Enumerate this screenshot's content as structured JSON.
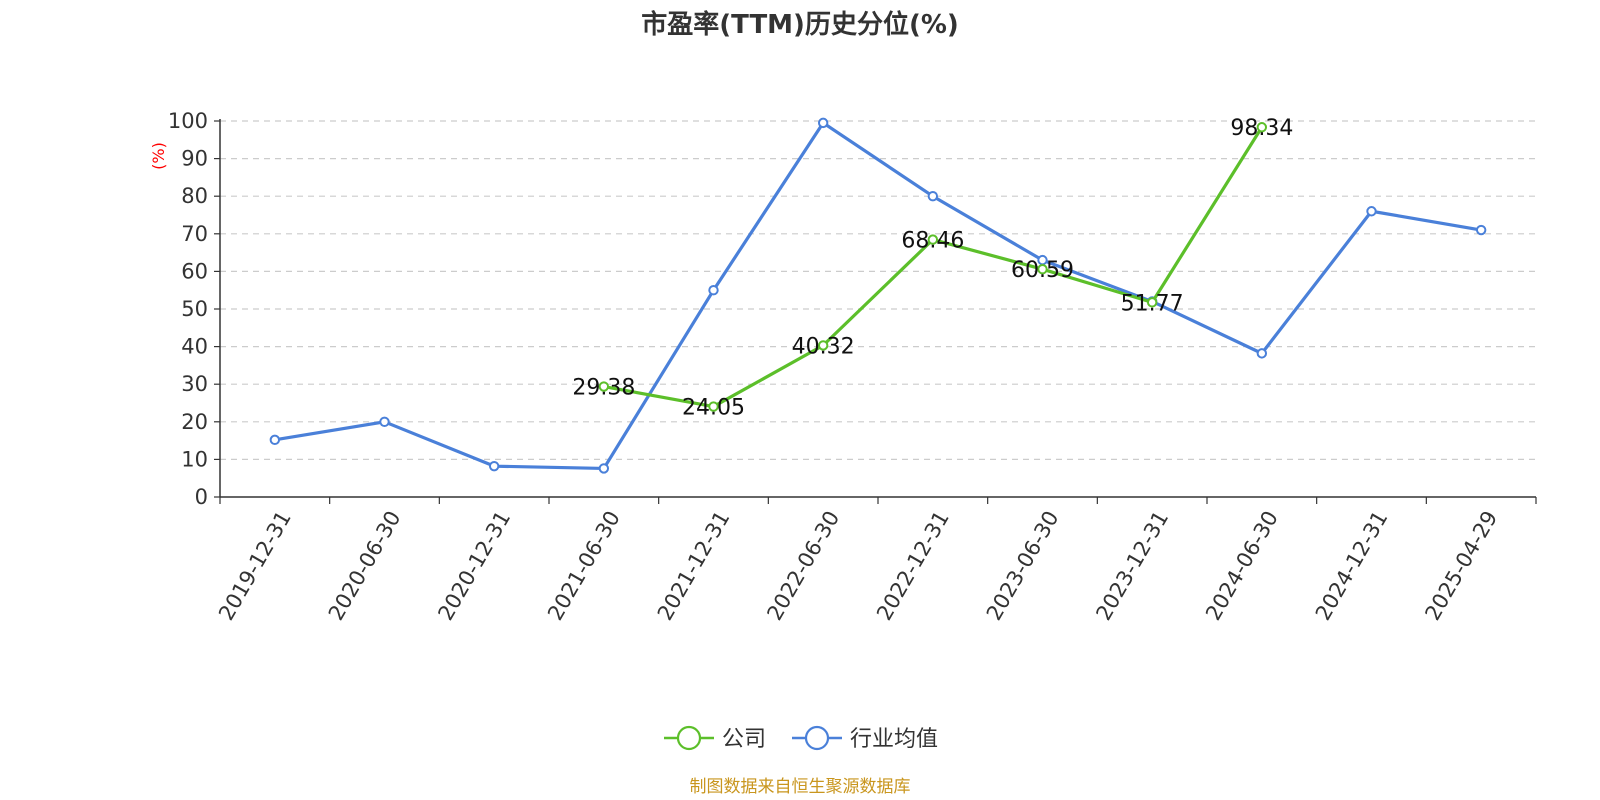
{
  "chart_data": {
    "type": "line",
    "title": "市盈率(TTM)历史分位(%)",
    "y_unit": "(%)",
    "ylim": [
      0,
      100
    ],
    "y_ticks": [
      0,
      10,
      20,
      30,
      40,
      50,
      60,
      70,
      80,
      90,
      100
    ],
    "grid": "horizontal dashed",
    "legend_position": "bottom-center",
    "x_tick_labels": [
      "2019-12-31",
      "2020-06-30",
      "2020-12-31",
      "2021-06-30",
      "2021-12-31",
      "2022-06-30",
      "2022-12-31",
      "2023-06-30",
      "2023-12-31",
      "2024-06-30",
      "2024-12-31",
      "2025-04-29"
    ],
    "series": [
      {
        "name": "公司",
        "color": "#5cbf2a",
        "values": [
          null,
          null,
          null,
          29.38,
          24.05,
          40.32,
          68.46,
          60.59,
          51.77,
          98.34,
          null,
          null
        ],
        "value_labels": [
          "",
          "",
          "",
          "29.38",
          "24.05",
          "40.32",
          "68.46",
          "60.59",
          "51.77",
          "98.34",
          "",
          ""
        ]
      },
      {
        "name": "行业均值",
        "color": "#4a80d9",
        "values": [
          15.2,
          20.0,
          8.2,
          7.6,
          55.0,
          99.5,
          80.0,
          63.0,
          52.0,
          38.2,
          76.0,
          71.0
        ]
      }
    ]
  },
  "source": "制图数据来自恒生聚源数据库"
}
